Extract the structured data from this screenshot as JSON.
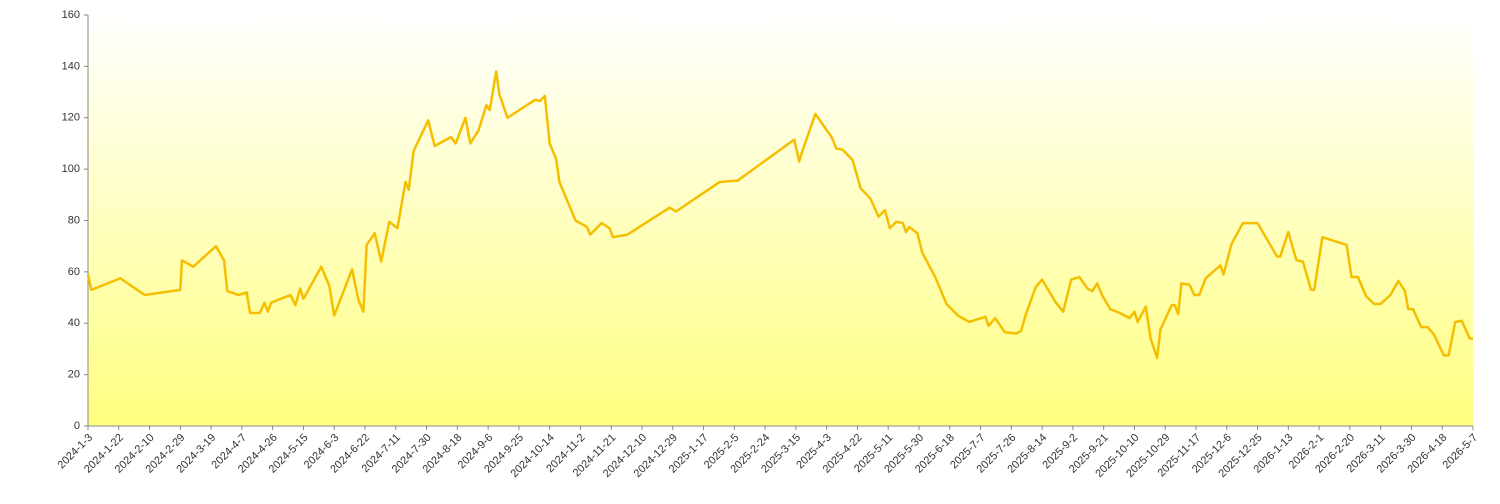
{
  "chart_data": {
    "type": "line",
    "color": "#f5be00",
    "xlim": [
      "2024-1-3",
      "2026-5-7"
    ],
    "xticks": [
      "2024-1-3",
      "2024-1-22",
      "2024-2-10",
      "2024-2-29",
      "2024-3-19",
      "2024-4-7",
      "2024-4-26",
      "2024-5-15",
      "2024-6-3",
      "2024-6-22",
      "2024-7-11",
      "2024-7-30",
      "2024-8-18",
      "2024-9-6",
      "2024-9-25",
      "2024-10-14",
      "2024-11-2",
      "2024-11-21",
      "2024-12-10",
      "2024-12-29",
      "2025-1-17",
      "2025-2-5",
      "2025-2-24",
      "2025-3-15",
      "2025-4-3",
      "2025-4-22",
      "2025-5-11",
      "2025-5-30",
      "2025-6-18",
      "2025-7-7",
      "2025-7-26",
      "2025-8-14",
      "2025-9-2",
      "2025-9-21",
      "2025-10-10",
      "2025-10-29",
      "2025-11-17",
      "2025-12-6",
      "2025-12-25",
      "2026-1-13",
      "2026-2-1",
      "2026-2-20",
      "2026-3-11",
      "2026-3-30",
      "2026-4-18",
      "2026-5-7"
    ],
    "ylim": [
      0,
      160
    ],
    "yticks": [
      0,
      20,
      40,
      60,
      80,
      100,
      120,
      140,
      160
    ],
    "x": [
      "2024-1-3",
      "2024-1-5",
      "2024-1-23",
      "2024-2-7",
      "2024-2-29",
      "2024-3-1",
      "2024-3-8",
      "2024-3-15",
      "2024-3-22",
      "2024-3-27",
      "2024-3-29",
      "2024-4-5",
      "2024-4-10",
      "2024-4-12",
      "2024-4-18",
      "2024-4-21",
      "2024-4-23",
      "2024-4-25",
      "2024-5-7",
      "2024-5-10",
      "2024-5-13",
      "2024-5-15",
      "2024-5-26",
      "2024-5-31",
      "2024-6-3",
      "2024-6-14",
      "2024-6-18",
      "2024-6-21",
      "2024-6-23",
      "2024-6-28",
      "2024-7-2",
      "2024-7-7",
      "2024-7-12",
      "2024-7-17",
      "2024-7-19",
      "2024-7-22",
      "2024-7-28",
      "2024-7-31",
      "2024-8-4",
      "2024-8-14",
      "2024-8-17",
      "2024-8-23",
      "2024-8-26",
      "2024-8-31",
      "2024-9-5",
      "2024-9-7",
      "2024-9-11",
      "2024-9-13",
      "2024-9-18",
      "2024-10-5",
      "2024-10-8",
      "2024-10-11",
      "2024-10-14",
      "2024-10-18",
      "2024-10-20",
      "2024-10-30",
      "2024-11-6",
      "2024-11-8",
      "2024-11-15",
      "2024-11-20",
      "2024-11-22",
      "2024-12-1",
      "2024-12-27",
      "2024-12-31",
      "2025-1-27",
      "2025-2-7",
      "2025-3-14",
      "2025-3-17",
      "2025-3-19",
      "2025-3-27",
      "2025-4-6",
      "2025-4-9",
      "2025-4-13",
      "2025-4-19",
      "2025-4-24",
      "2025-4-30",
      "2025-5-5",
      "2025-5-9",
      "2025-5-12",
      "2025-5-16",
      "2025-5-20",
      "2025-5-22",
      "2025-5-24",
      "2025-5-29",
      "2025-6-1",
      "2025-6-9",
      "2025-6-16",
      "2025-6-23",
      "2025-6-30",
      "2025-7-10",
      "2025-7-12",
      "2025-7-16",
      "2025-7-22",
      "2025-7-29",
      "2025-8-1",
      "2025-8-4",
      "2025-8-10",
      "2025-8-14",
      "2025-8-22",
      "2025-8-27",
      "2025-9-1",
      "2025-9-6",
      "2025-9-11",
      "2025-9-14",
      "2025-9-17",
      "2025-9-20",
      "2025-9-25",
      "2025-10-1",
      "2025-10-7",
      "2025-10-10",
      "2025-10-12",
      "2025-10-17",
      "2025-10-20",
      "2025-10-24",
      "2025-10-26",
      "2025-11-2",
      "2025-11-4",
      "2025-11-6",
      "2025-11-8",
      "2025-11-13",
      "2025-11-16",
      "2025-11-19",
      "2025-11-23",
      "2025-12-2",
      "2025-12-4",
      "2025-12-9",
      "2025-12-16",
      "2025-12-25",
      "2026-1-6",
      "2026-1-8",
      "2026-1-13",
      "2026-1-18",
      "2026-1-22",
      "2026-1-27",
      "2026-1-29",
      "2026-2-3",
      "2026-2-18",
      "2026-2-21",
      "2026-2-25",
      "2026-3-2",
      "2026-3-7",
      "2026-3-11",
      "2026-3-17",
      "2026-3-22",
      "2026-3-26",
      "2026-3-28",
      "2026-3-31",
      "2026-4-5",
      "2026-4-9",
      "2026-4-13",
      "2026-4-19",
      "2026-4-22",
      "2026-4-26",
      "2026-4-30",
      "2026-5-5",
      "2026-5-7"
    ],
    "values": [
      59,
      53,
      57.5,
      51,
      53,
      64.5,
      62,
      66,
      70,
      64.5,
      52.5,
      51,
      52,
      44,
      44,
      48,
      44.5,
      48,
      51,
      47,
      53.5,
      49.5,
      62,
      54.5,
      43,
      61,
      49,
      44.5,
      70.5,
      75,
      64,
      79.5,
      77,
      95,
      92,
      107,
      115,
      119,
      109,
      112.5,
      110,
      120,
      110,
      115,
      125,
      123,
      138,
      129,
      120,
      127,
      126.5,
      128.5,
      110,
      104,
      95,
      80,
      77.5,
      74.5,
      79,
      77,
      73.5,
      74.5,
      85,
      83.5,
      95,
      95.5,
      111.5,
      103,
      107,
      121.5,
      112.5,
      108,
      107.5,
      103.5,
      92.5,
      88.5,
      81.5,
      84,
      77,
      79.5,
      79,
      75.5,
      77.5,
      75,
      67.5,
      58,
      47.5,
      43,
      40.5,
      42.5,
      39,
      42,
      36.5,
      36,
      37,
      43.5,
      54,
      57,
      48.5,
      44.5,
      57,
      58,
      53.5,
      52.5,
      55.5,
      51,
      45.5,
      44,
      42,
      44.5,
      40.5,
      46.5,
      34,
      26.5,
      37.5,
      47,
      47,
      43.5,
      55.5,
      55,
      51,
      51,
      57.5,
      62.5,
      59,
      71,
      79,
      79,
      66,
      66,
      75.5,
      64.5,
      64,
      53,
      53,
      73.5,
      70.5,
      58,
      58,
      50.5,
      47.5,
      47.5,
      51,
      56.5,
      52.5,
      45.5,
      45.5,
      38.5,
      38.5,
      35.5,
      27.5,
      27.5,
      40.5,
      41,
      34,
      34
    ]
  }
}
